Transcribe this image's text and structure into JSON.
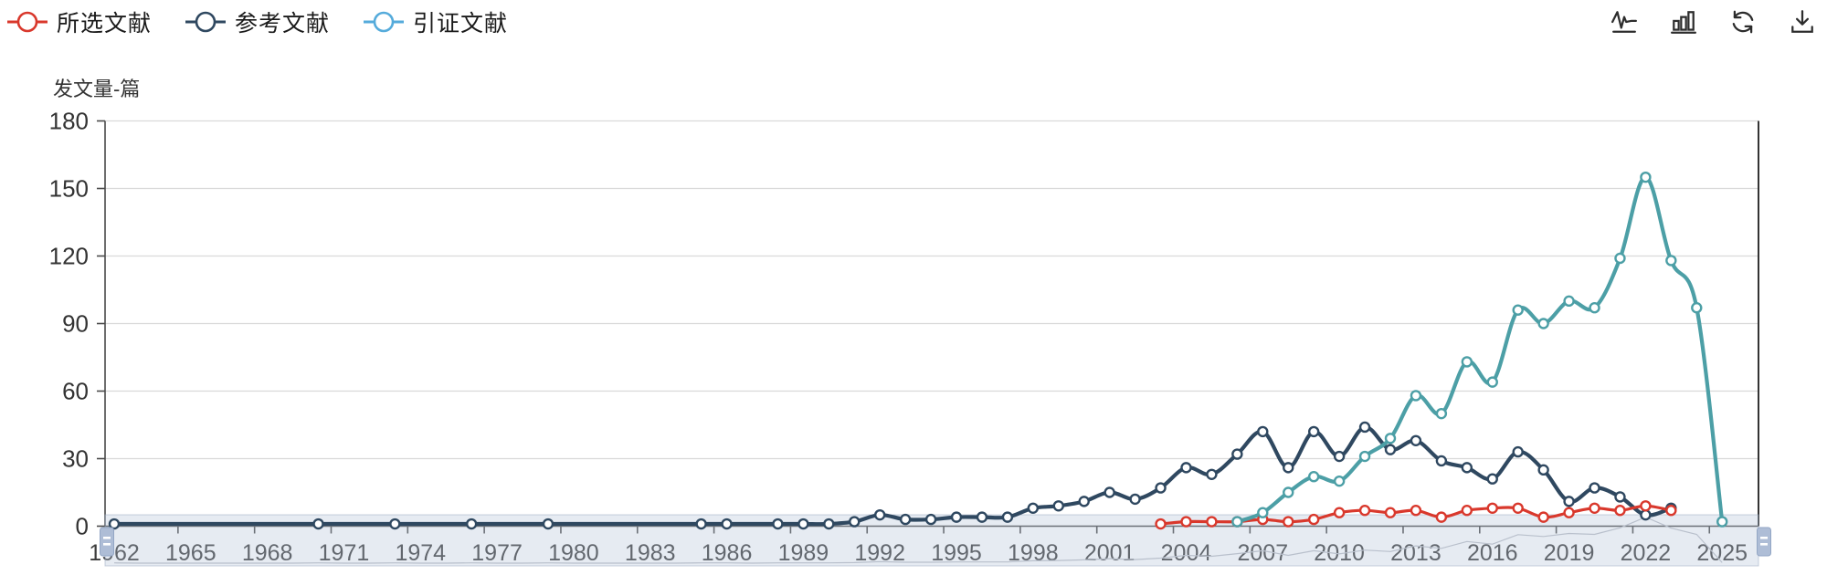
{
  "legend": {
    "items": [
      {
        "label": "所选文献",
        "color": "#D9382C"
      },
      {
        "label": "参考文献",
        "color": "#2F4860"
      },
      {
        "label": "引证文献",
        "color": "#55ABDB"
      }
    ]
  },
  "toolbar": {
    "icons": [
      "line-chart",
      "bar-chart",
      "refresh",
      "download"
    ]
  },
  "y_axis_name": "发文量-篇",
  "chart_data": {
    "type": "line",
    "smooth": true,
    "x_start_year": 1962,
    "x_end_year": 2025,
    "x_tick_labels": [
      "1962",
      "1965",
      "1968",
      "1971",
      "1974",
      "1977",
      "1980",
      "1983",
      "1986",
      "1989",
      "1992",
      "1995",
      "1998",
      "2001",
      "2004",
      "2007",
      "2010",
      "2013",
      "2016",
      "2019",
      "2022",
      "2025"
    ],
    "ylim": [
      0,
      180
    ],
    "y_ticks": [
      0,
      30,
      60,
      90,
      120,
      150,
      180
    ],
    "grid": "horizontal",
    "legend_position": "top-left",
    "has_datazoom_slider": true,
    "series": [
      {
        "name": "所选文献",
        "color": "#D9382C",
        "line_color": "#D9382C",
        "line_width": 3.2,
        "values": [
          null,
          null,
          null,
          null,
          null,
          null,
          null,
          null,
          null,
          null,
          null,
          null,
          null,
          null,
          null,
          null,
          null,
          null,
          null,
          null,
          null,
          null,
          null,
          null,
          null,
          null,
          null,
          null,
          null,
          null,
          null,
          null,
          null,
          null,
          null,
          null,
          null,
          null,
          null,
          null,
          null,
          1,
          2,
          2,
          2,
          3,
          2,
          3,
          6,
          7,
          6,
          7,
          4,
          7,
          8,
          8,
          4,
          6,
          8,
          7,
          9,
          7,
          null,
          null
        ]
      },
      {
        "name": "参考文献",
        "color": "#2F4860",
        "line_color": "#2F4860",
        "line_width": 4.2,
        "values": [
          1,
          null,
          null,
          null,
          null,
          null,
          null,
          null,
          1,
          null,
          null,
          1,
          null,
          null,
          1,
          null,
          null,
          1,
          null,
          null,
          null,
          null,
          null,
          1,
          1,
          null,
          1,
          1,
          1,
          2,
          5,
          3,
          3,
          4,
          4,
          4,
          8,
          9,
          11,
          15,
          12,
          17,
          26,
          23,
          32,
          42,
          26,
          42,
          31,
          44,
          34,
          38,
          29,
          26,
          21,
          33,
          25,
          11,
          17,
          13,
          5,
          8,
          null,
          null
        ]
      },
      {
        "name": "引证文献",
        "color": "#55ABDB",
        "line_color": "#4C9FA6",
        "line_width": 4.2,
        "values": [
          null,
          null,
          null,
          null,
          null,
          null,
          null,
          null,
          null,
          null,
          null,
          null,
          null,
          null,
          null,
          null,
          null,
          null,
          null,
          null,
          null,
          null,
          null,
          null,
          null,
          null,
          null,
          null,
          null,
          null,
          null,
          null,
          null,
          null,
          null,
          null,
          null,
          null,
          null,
          null,
          null,
          null,
          null,
          null,
          2,
          6,
          15,
          22,
          20,
          31,
          39,
          58,
          50,
          73,
          64,
          96,
          90,
          100,
          97,
          119,
          155,
          118,
          97,
          2,
          null,
          null
        ]
      }
    ]
  },
  "colors": {
    "grid_line": "#d9d9d9",
    "axis_line": "#4a4a4a",
    "plot_right_border": "#333333",
    "slider_band_fill": "rgba(176,192,216,0.32)",
    "slider_band_border": "rgba(150,165,190,0.5)",
    "slider_handle_fill": "#AEBDD6",
    "slider_handle_border": "#93A6C5",
    "data_shadow": "#b9c0cc"
  }
}
